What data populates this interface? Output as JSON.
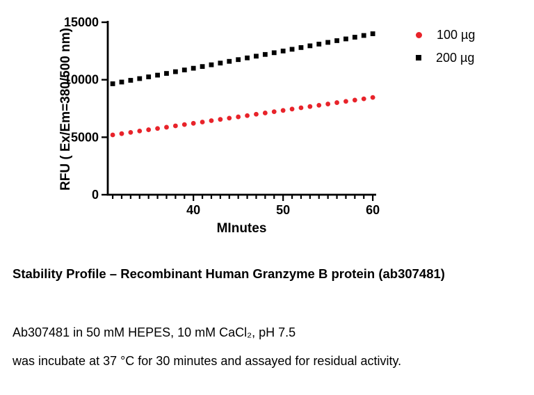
{
  "chart_data": {
    "type": "scatter",
    "title": "",
    "xlabel": "MInutes",
    "ylabel": "RFU ( Ex/Em=380/500 nm)",
    "x": [
      31,
      32,
      33,
      34,
      35,
      36,
      37,
      38,
      39,
      40,
      41,
      42,
      43,
      44,
      45,
      46,
      47,
      48,
      49,
      50,
      51,
      52,
      53,
      54,
      55,
      56,
      57,
      58,
      59,
      60
    ],
    "series": [
      {
        "name": "100 µg",
        "color": "#e8232a",
        "marker": "circle",
        "values": [
          5200,
          5310,
          5420,
          5540,
          5650,
          5760,
          5870,
          5990,
          6100,
          6210,
          6320,
          6440,
          6550,
          6660,
          6770,
          6880,
          7000,
          7110,
          7220,
          7330,
          7450,
          7560,
          7670,
          7780,
          7890,
          8010,
          8120,
          8230,
          8340,
          8460
        ]
      },
      {
        "name": "200 µg",
        "color": "#000000",
        "marker": "square",
        "values": [
          9650,
          9800,
          9950,
          10100,
          10250,
          10400,
          10550,
          10700,
          10850,
          11000,
          11150,
          11300,
          11450,
          11600,
          11750,
          11900,
          12050,
          12200,
          12350,
          12500,
          12650,
          12800,
          12950,
          13100,
          13250,
          13400,
          13550,
          13700,
          13850,
          14000
        ]
      }
    ],
    "xlim": [
      30.45,
      60.3
    ],
    "ylim": [
      0,
      15000
    ],
    "yticks": [
      0,
      5000,
      10000,
      15000
    ],
    "xticks_major": [
      40,
      50,
      60
    ],
    "grid": false,
    "legend_position": "right-top"
  },
  "caption": {
    "title": "Stability Profile – Recombinant Human Granzyme B protein (ab307481)",
    "line1": "Ab307481 in 50 mM HEPES, 10 mM CaCl₂, pH 7.5",
    "line2": "was incubate at 37 °C for 30 minutes and assayed for residual activity."
  }
}
